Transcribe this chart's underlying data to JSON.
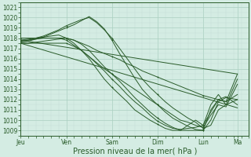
{
  "xlabel": "Pression niveau de la mer( hPa )",
  "xlim": [
    0,
    120
  ],
  "ylim": [
    1008.5,
    1021.5
  ],
  "yticks": [
    1009,
    1010,
    1011,
    1012,
    1013,
    1014,
    1015,
    1016,
    1017,
    1018,
    1019,
    1020,
    1021
  ],
  "xtick_labels": [
    "Jeu",
    "Ven",
    "Sam",
    "Dim",
    "Lun",
    "Ma"
  ],
  "xtick_positions": [
    0,
    24,
    48,
    72,
    96,
    114
  ],
  "bg_color": "#d4ece3",
  "grid_major_color": "#aacfc0",
  "grid_minor_color": "#c2ddd5",
  "line_color": "#2a5c2a",
  "line_width": 0.7,
  "marker_size": 2.0,
  "tick_fontsize": 5.5,
  "xlabel_fontsize": 7.0,
  "lines": [
    {
      "x": [
        0,
        4,
        8,
        12,
        16,
        20,
        24,
        28,
        32,
        36,
        40,
        44,
        48,
        52,
        56,
        60,
        64,
        68,
        72,
        76,
        80,
        84,
        88,
        92,
        96,
        100,
        104,
        108,
        114
      ],
      "y": [
        1018.0,
        1018.0,
        1018.0,
        1018.0,
        1018.0,
        1018.0,
        1018.0,
        1017.8,
        1017.5,
        1017.2,
        1016.8,
        1016.5,
        1016.2,
        1015.9,
        1015.5,
        1015.2,
        1014.8,
        1014.5,
        1014.2,
        1013.9,
        1013.6,
        1013.3,
        1013.0,
        1012.7,
        1012.4,
        1012.2,
        1012.0,
        1011.8,
        1014.5
      ]
    },
    {
      "x": [
        0,
        4,
        8,
        12,
        16,
        20,
        24,
        28,
        32,
        36,
        40,
        44,
        48,
        52,
        56,
        60,
        64,
        68,
        72,
        76,
        80,
        84,
        88,
        92,
        96,
        100,
        104,
        108,
        114
      ],
      "y": [
        1017.8,
        1017.8,
        1017.9,
        1018.0,
        1018.0,
        1018.0,
        1017.8,
        1017.3,
        1016.8,
        1016.2,
        1015.6,
        1015.0,
        1014.5,
        1014.0,
        1013.5,
        1013.0,
        1012.5,
        1012.0,
        1011.5,
        1011.0,
        1010.5,
        1010.0,
        1009.8,
        1009.5,
        1009.3,
        1010.5,
        1011.5,
        1011.3,
        1013.5
      ]
    },
    {
      "x": [
        0,
        4,
        8,
        12,
        16,
        20,
        24,
        28,
        32,
        36,
        40,
        44,
        48,
        52,
        56,
        60,
        64,
        68,
        72,
        76,
        80,
        84,
        88,
        92,
        96,
        100,
        104,
        108,
        114
      ],
      "y": [
        1017.7,
        1017.8,
        1018.0,
        1018.2,
        1018.5,
        1018.8,
        1019.2,
        1019.5,
        1019.8,
        1020.0,
        1019.5,
        1018.8,
        1018.0,
        1017.0,
        1016.0,
        1015.0,
        1014.0,
        1013.2,
        1012.5,
        1011.8,
        1011.2,
        1010.7,
        1010.2,
        1009.8,
        1009.2,
        1009.5,
        1011.0,
        1011.5,
        1012.0
      ]
    },
    {
      "x": [
        0,
        4,
        8,
        12,
        16,
        20,
        24,
        28,
        32,
        36,
        40,
        44,
        48,
        52,
        56,
        60,
        64,
        68,
        72,
        76,
        80,
        84,
        88,
        92,
        96,
        100,
        104,
        108,
        114
      ],
      "y": [
        1017.6,
        1017.7,
        1017.9,
        1018.1,
        1018.4,
        1018.7,
        1019.0,
        1019.3,
        1019.7,
        1020.1,
        1019.6,
        1018.9,
        1017.8,
        1016.5,
        1015.3,
        1014.1,
        1013.0,
        1012.2,
        1011.5,
        1010.8,
        1010.2,
        1009.8,
        1009.4,
        1009.1,
        1009.0,
        1011.0,
        1012.0,
        1011.8,
        1012.5
      ]
    },
    {
      "x": [
        0,
        4,
        8,
        12,
        16,
        20,
        24,
        28,
        32,
        36,
        40,
        44,
        48,
        52,
        56,
        60,
        64,
        68,
        72,
        76,
        80,
        84,
        88,
        92,
        96,
        100,
        104,
        108,
        114
      ],
      "y": [
        1017.5,
        1017.5,
        1017.6,
        1017.7,
        1017.8,
        1017.9,
        1018.0,
        1017.8,
        1017.4,
        1016.8,
        1016.0,
        1015.2,
        1014.5,
        1013.8,
        1013.0,
        1012.2,
        1011.5,
        1010.8,
        1010.2,
        1009.7,
        1009.3,
        1009.0,
        1009.0,
        1009.0,
        1009.0,
        1010.0,
        1011.8,
        1012.2,
        1012.0
      ]
    },
    {
      "x": [
        0,
        4,
        8,
        12,
        16,
        20,
        24,
        28,
        32,
        36,
        40,
        44,
        48,
        52,
        56,
        60,
        64,
        68,
        72,
        76,
        80,
        84,
        88,
        92,
        96,
        100,
        104,
        108,
        114
      ],
      "y": [
        1017.8,
        1017.9,
        1018.0,
        1018.1,
        1018.2,
        1018.3,
        1018.0,
        1017.5,
        1016.8,
        1016.0,
        1015.0,
        1014.0,
        1013.2,
        1012.5,
        1011.8,
        1011.0,
        1010.5,
        1010.0,
        1009.6,
        1009.2,
        1009.0,
        1009.0,
        1009.5,
        1010.0,
        1009.5,
        1011.5,
        1012.5,
        1011.5,
        1014.0
      ]
    },
    {
      "x": [
        0,
        4,
        8,
        12,
        16,
        20,
        24,
        28,
        32,
        36,
        40,
        44,
        48,
        52,
        56,
        60,
        64,
        68,
        72,
        76,
        80,
        84,
        88,
        92,
        96,
        100,
        104,
        108,
        114
      ],
      "y": [
        1017.5,
        1017.5,
        1017.5,
        1017.5,
        1017.5,
        1017.5,
        1017.5,
        1017.2,
        1016.8,
        1016.2,
        1015.5,
        1014.8,
        1014.0,
        1013.3,
        1012.5,
        1011.8,
        1011.2,
        1010.5,
        1009.9,
        1009.5,
        1009.2,
        1009.1,
        1009.2,
        1009.3,
        1009.5,
        1010.8,
        1012.0,
        1012.3,
        1011.5
      ]
    },
    {
      "x": [
        0,
        114
      ],
      "y": [
        1017.8,
        1014.5
      ]
    },
    {
      "x": [
        0,
        114
      ],
      "y": [
        1017.5,
        1011.2
      ]
    }
  ]
}
